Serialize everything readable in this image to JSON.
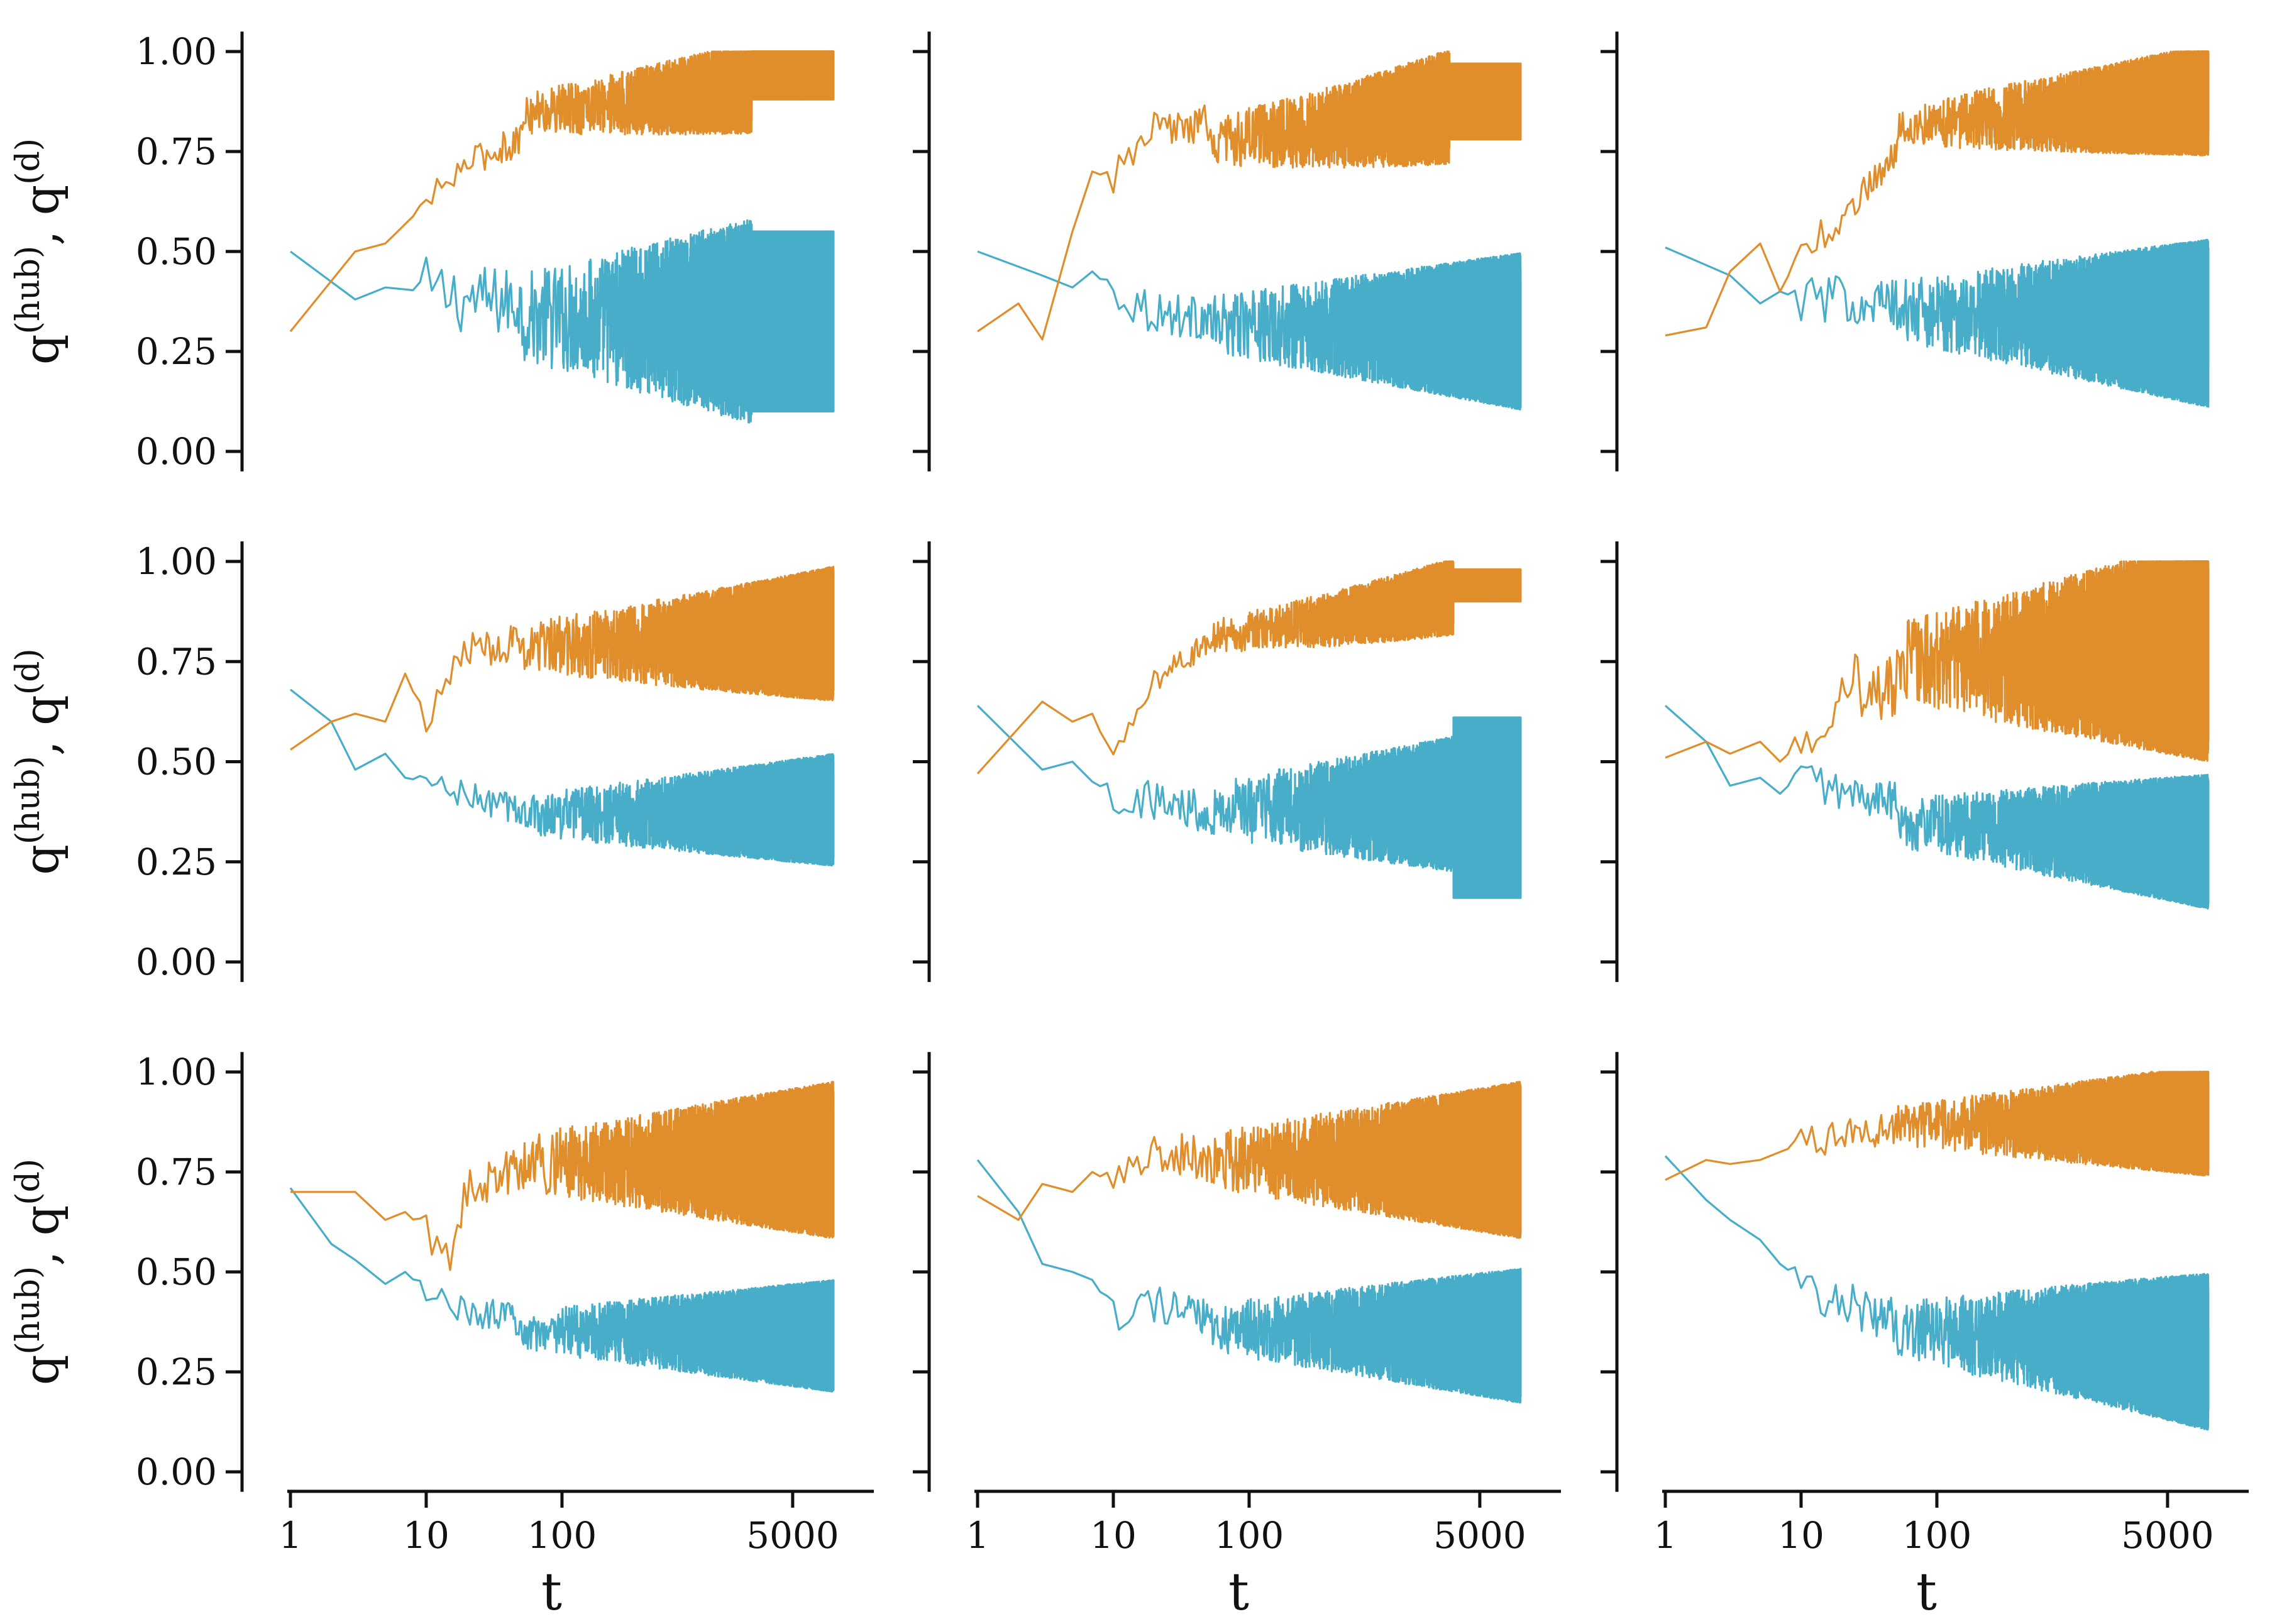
{
  "chart_data": {
    "type": "line",
    "layout": {
      "rows": 3,
      "cols": 3,
      "sharex": true,
      "sharey": true
    },
    "xscale": "log",
    "xlim": [
      0.75,
      16000
    ],
    "ylim": [
      -0.05,
      1.05
    ],
    "xticks": [
      1,
      10,
      100,
      5000
    ],
    "xtick_labels": [
      "1",
      "10",
      "100",
      "5000"
    ],
    "yticks": [
      0,
      0.25,
      0.5,
      0.75,
      1.0
    ],
    "ytick_labels": [
      "0.00",
      "0.25",
      "0.50",
      "0.75",
      "1.00"
    ],
    "xlabel": "t",
    "ylabel": {
      "base": "q",
      "sup_hub": "(hub)",
      "sep": ",",
      "sup_d": "(d)"
    },
    "colors": {
      "hub": "#E08E2C",
      "d": "#47ADC8"
    },
    "t_max": 10000,
    "panels": [
      {
        "hub": {
          "start": 0.3,
          "early": [
            [
              1,
              0.3
            ],
            [
              3,
              0.5
            ],
            [
              5,
              0.52
            ],
            [
              10,
              0.62
            ],
            [
              20,
              0.72
            ],
            [
              50,
              0.78
            ]
          ],
          "mid": 0.88,
          "late": 0.94,
          "osc": 0.1,
          "plateau": [
            2500,
            0.88,
            1.0
          ]
        },
        "d": {
          "start": 0.5,
          "early": [
            [
              1,
              0.5
            ],
            [
              3,
              0.38
            ],
            [
              5,
              0.41
            ],
            [
              10,
              0.4
            ],
            [
              20,
              0.38
            ],
            [
              50,
              0.37
            ]
          ],
          "mid": 0.32,
          "late": 0.32,
          "osc": 0.22,
          "plateau": [
            2500,
            0.1,
            0.55
          ]
        }
      },
      {
        "hub": {
          "start": 0.3,
          "early": [
            [
              1,
              0.3
            ],
            [
              2,
              0.37
            ],
            [
              3,
              0.28
            ],
            [
              5,
              0.55
            ],
            [
              7,
              0.7
            ],
            [
              10,
              0.68
            ],
            [
              20,
              0.8
            ],
            [
              50,
              0.82
            ]
          ],
          "mid": 0.75,
          "late": 0.9,
          "osc": 0.12,
          "plateau": [
            3000,
            0.78,
            0.97
          ]
        },
        "d": {
          "start": 0.5,
          "early": [
            [
              1,
              0.5
            ],
            [
              3,
              0.44
            ],
            [
              5,
              0.41
            ],
            [
              7,
              0.45
            ],
            [
              10,
              0.4
            ],
            [
              20,
              0.35
            ],
            [
              50,
              0.33
            ]
          ],
          "mid": 0.31,
          "late": 0.3,
          "osc": 0.14,
          "plateau": null
        }
      },
      {
        "hub": {
          "start": 0.29,
          "early": [
            [
              1,
              0.29
            ],
            [
              2,
              0.31
            ],
            [
              3,
              0.45
            ],
            [
              5,
              0.52
            ],
            [
              7,
              0.4
            ],
            [
              10,
              0.5
            ],
            [
              20,
              0.58
            ],
            [
              50,
              0.75
            ]
          ],
          "mid": 0.85,
          "late": 0.88,
          "osc": 0.1,
          "plateau": null
        },
        "d": {
          "start": 0.51,
          "early": [
            [
              1,
              0.51
            ],
            [
              3,
              0.44
            ],
            [
              5,
              0.37
            ],
            [
              7,
              0.4
            ],
            [
              10,
              0.38
            ],
            [
              20,
              0.38
            ],
            [
              50,
              0.37
            ]
          ],
          "mid": 0.34,
          "late": 0.32,
          "osc": 0.15,
          "plateau": null
        }
      },
      {
        "hub": {
          "start": 0.53,
          "early": [
            [
              1,
              0.53
            ],
            [
              2,
              0.6
            ],
            [
              3,
              0.62
            ],
            [
              5,
              0.6
            ],
            [
              7,
              0.72
            ],
            [
              10,
              0.6
            ],
            [
              20,
              0.78
            ],
            [
              50,
              0.8
            ]
          ],
          "mid": 0.78,
          "late": 0.82,
          "osc": 0.12,
          "plateau": null
        },
        "d": {
          "start": 0.68,
          "early": [
            [
              1,
              0.68
            ],
            [
              2,
              0.6
            ],
            [
              3,
              0.48
            ],
            [
              5,
              0.52
            ],
            [
              7,
              0.46
            ],
            [
              10,
              0.45
            ],
            [
              20,
              0.41
            ],
            [
              50,
              0.38
            ]
          ],
          "mid": 0.36,
          "late": 0.38,
          "osc": 0.1,
          "plateau": null
        }
      },
      {
        "hub": {
          "start": 0.47,
          "early": [
            [
              1,
              0.47
            ],
            [
              3,
              0.65
            ],
            [
              5,
              0.6
            ],
            [
              7,
              0.62
            ],
            [
              10,
              0.5
            ],
            [
              20,
              0.7
            ],
            [
              50,
              0.8
            ]
          ],
          "mid": 0.82,
          "late": 0.95,
          "osc": 0.08,
          "plateau": [
            3200,
            0.9,
            0.98
          ]
        },
        "d": {
          "start": 0.64,
          "early": [
            [
              1,
              0.64
            ],
            [
              3,
              0.48
            ],
            [
              5,
              0.5
            ],
            [
              7,
              0.45
            ],
            [
              10,
              0.42
            ],
            [
              20,
              0.4
            ],
            [
              50,
              0.38
            ]
          ],
          "mid": 0.38,
          "late": 0.4,
          "osc": 0.14,
          "plateau": [
            3200,
            0.16,
            0.61
          ]
        }
      },
      {
        "hub": {
          "start": 0.51,
          "early": [
            [
              1,
              0.51
            ],
            [
              2,
              0.55
            ],
            [
              3,
              0.52
            ],
            [
              5,
              0.55
            ],
            [
              7,
              0.5
            ],
            [
              10,
              0.55
            ],
            [
              20,
              0.7
            ],
            [
              50,
              0.68
            ]
          ],
          "mid": 0.78,
          "late": 0.78,
          "osc": 0.2,
          "plateau": null
        },
        "d": {
          "start": 0.64,
          "early": [
            [
              1,
              0.64
            ],
            [
              2,
              0.55
            ],
            [
              3,
              0.44
            ],
            [
              5,
              0.46
            ],
            [
              7,
              0.42
            ],
            [
              10,
              0.47
            ],
            [
              20,
              0.42
            ],
            [
              50,
              0.4
            ]
          ],
          "mid": 0.32,
          "late": 0.3,
          "osc": 0.12,
          "plateau": null
        }
      },
      {
        "hub": {
          "start": 0.7,
          "early": [
            [
              1,
              0.7
            ],
            [
              3,
              0.7
            ],
            [
              5,
              0.63
            ],
            [
              7,
              0.65
            ],
            [
              10,
              0.6
            ],
            [
              15,
              0.52
            ],
            [
              20,
              0.7
            ],
            [
              50,
              0.76
            ]
          ],
          "mid": 0.78,
          "late": 0.78,
          "osc": 0.14,
          "plateau": null
        },
        "d": {
          "start": 0.71,
          "early": [
            [
              1,
              0.71
            ],
            [
              2,
              0.57
            ],
            [
              3,
              0.53
            ],
            [
              5,
              0.47
            ],
            [
              7,
              0.5
            ],
            [
              10,
              0.45
            ],
            [
              20,
              0.4
            ],
            [
              50,
              0.38
            ]
          ],
          "mid": 0.34,
          "late": 0.34,
          "osc": 0.1,
          "plateau": null
        }
      },
      {
        "hub": {
          "start": 0.69,
          "early": [
            [
              1,
              0.69
            ],
            [
              2,
              0.63
            ],
            [
              3,
              0.72
            ],
            [
              5,
              0.7
            ],
            [
              7,
              0.75
            ],
            [
              10,
              0.72
            ],
            [
              20,
              0.8
            ],
            [
              50,
              0.78
            ]
          ],
          "mid": 0.78,
          "late": 0.78,
          "osc": 0.14,
          "plateau": null
        },
        "d": {
          "start": 0.78,
          "early": [
            [
              1,
              0.78
            ],
            [
              2,
              0.65
            ],
            [
              3,
              0.52
            ],
            [
              5,
              0.5
            ],
            [
              7,
              0.48
            ],
            [
              10,
              0.4
            ],
            [
              20,
              0.42
            ],
            [
              50,
              0.38
            ]
          ],
          "mid": 0.35,
          "late": 0.34,
          "osc": 0.12,
          "plateau": null
        }
      },
      {
        "hub": {
          "start": 0.73,
          "early": [
            [
              1,
              0.73
            ],
            [
              2,
              0.78
            ],
            [
              3,
              0.77
            ],
            [
              5,
              0.78
            ],
            [
              7,
              0.8
            ],
            [
              10,
              0.82
            ],
            [
              20,
              0.84
            ],
            [
              50,
              0.86
            ]
          ],
          "mid": 0.87,
          "late": 0.88,
          "osc": 0.1,
          "plateau": null
        },
        "d": {
          "start": 0.79,
          "early": [
            [
              1,
              0.79
            ],
            [
              2,
              0.68
            ],
            [
              3,
              0.63
            ],
            [
              5,
              0.58
            ],
            [
              7,
              0.52
            ],
            [
              10,
              0.48
            ],
            [
              20,
              0.42
            ],
            [
              50,
              0.38
            ]
          ],
          "mid": 0.34,
          "late": 0.3,
          "osc": 0.14,
          "plateau": null
        }
      }
    ]
  }
}
